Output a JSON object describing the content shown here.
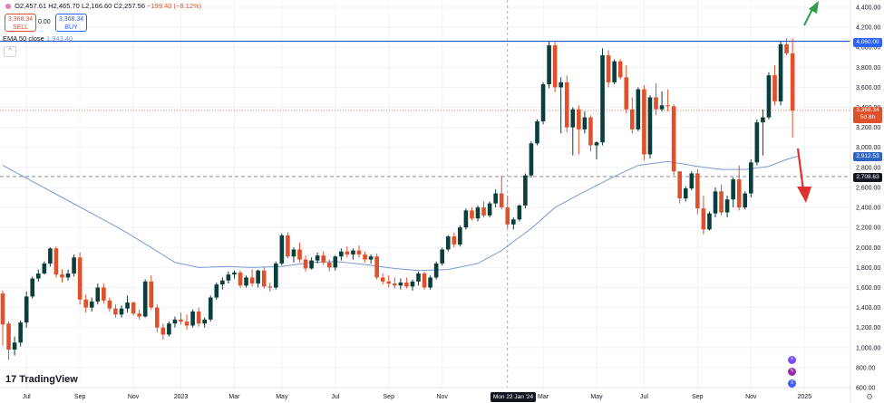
{
  "header": {
    "ohlc": {
      "open": "O2,457.61",
      "high": "H2,465.70",
      "low": "L2,166.60",
      "close": "C2,257.56",
      "change": "−199.40 (−8.12%)"
    },
    "sell_price": "3,368.34",
    "sell_label": "SELL",
    "spread": "0.00",
    "buy_price": "3,368.34",
    "buy_label": "BUY",
    "ema_label": "EMA 50 close",
    "ema_value": "1,943.40",
    "collapse_glyph": "^"
  },
  "logo": {
    "mark": "17",
    "text": "TradingView"
  },
  "price_badges": {
    "resistance": "4,060.00",
    "last_price": "3,368.34",
    "countdown": "5d 8h",
    "ema": "2,912.53",
    "dashed": "2,708.63"
  },
  "crosshair_date": "Mon 22 Jan '24",
  "colors": {
    "up": "#0b3d3a",
    "down": "#e0502a",
    "ema": "#7a9ad6",
    "resistance": "#2457c5",
    "arrow_up": "#2f9e44",
    "arrow_down": "#e03131"
  },
  "icons": [
    "plus-event-icon",
    "bolt-event-icon",
    "flag-event-icon",
    "gear-icon"
  ],
  "chart_data": {
    "type": "candlestick",
    "title": "",
    "ylim": [
      600,
      4400
    ],
    "yticks": [
      600,
      800,
      1000,
      1200,
      1400,
      1600,
      1800,
      2000,
      2200,
      2400,
      2600,
      2800,
      3000,
      3200,
      3400,
      3600,
      3800,
      4000,
      4200,
      4400
    ],
    "ytick_labels": [
      "600.00",
      "800.00",
      "1,000.00",
      "1,200.00",
      "1,400.00",
      "1,600.00",
      "1,800.00",
      "2,000.00",
      "2,200.00",
      "2,400.00",
      "2,600.00",
      "2,800.00",
      "3,000.00",
      "3,200.00",
      "3,400.00",
      "3,600.00",
      "3,800.00",
      "4,000.00",
      "4,200.00",
      "4,400.00"
    ],
    "xticks": [
      {
        "label": "Jul",
        "bar": 4
      },
      {
        "label": "Sep",
        "bar": 13
      },
      {
        "label": "Nov",
        "bar": 22
      },
      {
        "label": "2023",
        "bar": 30
      },
      {
        "label": "Mar",
        "bar": 39
      },
      {
        "label": "May",
        "bar": 47
      },
      {
        "label": "Jul",
        "bar": 56
      },
      {
        "label": "Sep",
        "bar": 65
      },
      {
        "label": "Nov",
        "bar": 74
      },
      {
        "label": "Mar",
        "bar": 91
      },
      {
        "label": "May",
        "bar": 100
      },
      {
        "label": "Jul",
        "bar": 108
      },
      {
        "label": "Sep",
        "bar": 117
      },
      {
        "label": "Nov",
        "bar": 126
      },
      {
        "label": "2025",
        "bar": 135
      }
    ],
    "crosshair_bar": 85,
    "horizontal_levels": [
      4060,
      3368.34,
      2708.63
    ],
    "candles": [
      [
        1540,
        1570,
        1020,
        1230
      ],
      [
        1240,
        1260,
        880,
        980
      ],
      [
        980,
        1110,
        920,
        1050
      ],
      [
        1050,
        1270,
        1010,
        1250
      ],
      [
        1250,
        1560,
        1200,
        1510
      ],
      [
        1510,
        1710,
        1490,
        1690
      ],
      [
        1690,
        1780,
        1660,
        1740
      ],
      [
        1740,
        1860,
        1730,
        1840
      ],
      [
        1840,
        2000,
        1810,
        1990
      ],
      [
        1990,
        2010,
        1700,
        1730
      ],
      [
        1730,
        1780,
        1650,
        1700
      ],
      [
        1700,
        1780,
        1670,
        1740
      ],
      [
        1740,
        1930,
        1710,
        1900
      ],
      [
        1900,
        1950,
        1430,
        1480
      ],
      [
        1480,
        1530,
        1350,
        1400
      ],
      [
        1400,
        1500,
        1360,
        1460
      ],
      [
        1460,
        1640,
        1430,
        1600
      ],
      [
        1600,
        1640,
        1440,
        1470
      ],
      [
        1470,
        1500,
        1360,
        1390
      ],
      [
        1390,
        1430,
        1300,
        1330
      ],
      [
        1330,
        1420,
        1300,
        1390
      ],
      [
        1390,
        1520,
        1350,
        1450
      ],
      [
        1450,
        1460,
        1320,
        1340
      ],
      [
        1340,
        1380,
        1280,
        1310
      ],
      [
        1310,
        1680,
        1300,
        1660
      ],
      [
        1660,
        1720,
        1380,
        1400
      ],
      [
        1400,
        1430,
        1150,
        1200
      ],
      [
        1200,
        1240,
        1080,
        1130
      ],
      [
        1130,
        1260,
        1110,
        1240
      ],
      [
        1240,
        1310,
        1200,
        1280
      ],
      [
        1280,
        1350,
        1230,
        1260
      ],
      [
        1260,
        1330,
        1180,
        1220
      ],
      [
        1220,
        1380,
        1200,
        1360
      ],
      [
        1360,
        1400,
        1210,
        1240
      ],
      [
        1240,
        1300,
        1200,
        1280
      ],
      [
        1280,
        1520,
        1260,
        1500
      ],
      [
        1500,
        1650,
        1480,
        1630
      ],
      [
        1630,
        1700,
        1580,
        1670
      ],
      [
        1670,
        1760,
        1640,
        1730
      ],
      [
        1730,
        1770,
        1690,
        1750
      ],
      [
        1750,
        1770,
        1600,
        1620
      ],
      [
        1620,
        1720,
        1600,
        1700
      ],
      [
        1700,
        1780,
        1610,
        1640
      ],
      [
        1640,
        1780,
        1600,
        1770
      ],
      [
        1770,
        1800,
        1590,
        1610
      ],
      [
        1610,
        1650,
        1560,
        1600
      ],
      [
        1600,
        1860,
        1580,
        1840
      ],
      [
        1840,
        2140,
        1820,
        2120
      ],
      [
        2120,
        2150,
        1890,
        1910
      ],
      [
        1910,
        2000,
        1850,
        1980
      ],
      [
        1980,
        2050,
        1850,
        1880
      ],
      [
        1880,
        1920,
        1760,
        1790
      ],
      [
        1790,
        1900,
        1780,
        1870
      ],
      [
        1870,
        1950,
        1840,
        1920
      ],
      [
        1920,
        1960,
        1830,
        1850
      ],
      [
        1850,
        1880,
        1760,
        1800
      ],
      [
        1800,
        1920,
        1770,
        1910
      ],
      [
        1910,
        1990,
        1870,
        1960
      ],
      [
        1960,
        2010,
        1900,
        1930
      ],
      [
        1930,
        1990,
        1880,
        1970
      ],
      [
        1970,
        2020,
        1900,
        1930
      ],
      [
        1930,
        1960,
        1850,
        1880
      ],
      [
        1880,
        1930,
        1840,
        1910
      ],
      [
        1910,
        1940,
        1680,
        1700
      ],
      [
        1700,
        1740,
        1630,
        1660
      ],
      [
        1660,
        1720,
        1600,
        1640
      ],
      [
        1640,
        1700,
        1590,
        1620
      ],
      [
        1620,
        1690,
        1580,
        1650
      ],
      [
        1650,
        1700,
        1590,
        1610
      ],
      [
        1610,
        1680,
        1570,
        1660
      ],
      [
        1660,
        1760,
        1620,
        1740
      ],
      [
        1740,
        1760,
        1580,
        1600
      ],
      [
        1600,
        1720,
        1580,
        1700
      ],
      [
        1700,
        1860,
        1680,
        1840
      ],
      [
        1840,
        2000,
        1820,
        1980
      ],
      [
        1980,
        2120,
        1960,
        2110
      ],
      [
        2110,
        2150,
        2000,
        2030
      ],
      [
        2030,
        2220,
        2010,
        2200
      ],
      [
        2200,
        2390,
        2180,
        2370
      ],
      [
        2370,
        2400,
        2270,
        2290
      ],
      [
        2290,
        2420,
        2260,
        2400
      ],
      [
        2400,
        2460,
        2300,
        2320
      ],
      [
        2320,
        2460,
        2300,
        2440
      ],
      [
        2440,
        2580,
        2400,
        2540
      ],
      [
        2540,
        2720,
        2380,
        2400
      ],
      [
        2400,
        2520,
        2190,
        2230
      ],
      [
        2230,
        2300,
        2180,
        2280
      ],
      [
        2280,
        2430,
        2260,
        2420
      ],
      [
        2420,
        2740,
        2390,
        2720
      ],
      [
        2720,
        3060,
        2700,
        3040
      ],
      [
        3040,
        3280,
        3020,
        3260
      ],
      [
        3260,
        3650,
        3230,
        3630
      ],
      [
        3630,
        4060,
        3590,
        4020
      ],
      [
        4020,
        4060,
        3550,
        3600
      ],
      [
        3600,
        3700,
        3140,
        3650
      ],
      [
        3650,
        3720,
        3150,
        3200
      ],
      [
        3200,
        3400,
        2920,
        3380
      ],
      [
        3380,
        3420,
        2930,
        3180
      ],
      [
        3180,
        3360,
        3140,
        3300
      ],
      [
        3300,
        3320,
        2960,
        3020
      ],
      [
        3020,
        3060,
        2880,
        3050
      ],
      [
        3050,
        3990,
        3020,
        3920
      ],
      [
        3920,
        3970,
        3600,
        3650
      ],
      [
        3650,
        3880,
        3630,
        3860
      ],
      [
        3860,
        3880,
        3680,
        3700
      ],
      [
        3700,
        3820,
        3340,
        3380
      ],
      [
        3380,
        3500,
        3140,
        3180
      ],
      [
        3180,
        3600,
        3160,
        3580
      ],
      [
        3580,
        3620,
        2870,
        2930
      ],
      [
        2930,
        3520,
        2890,
        3500
      ],
      [
        3500,
        3640,
        3320,
        3380
      ],
      [
        3380,
        3560,
        3360,
        3420
      ],
      [
        3420,
        3580,
        3360,
        3410
      ],
      [
        3410,
        3430,
        2720,
        2760
      ],
      [
        2760,
        2760,
        2440,
        2490
      ],
      [
        2490,
        2610,
        2460,
        2590
      ],
      [
        2590,
        2760,
        2570,
        2740
      ],
      [
        2740,
        2780,
        2330,
        2390
      ],
      [
        2390,
        2520,
        2130,
        2180
      ],
      [
        2180,
        2360,
        2170,
        2340
      ],
      [
        2340,
        2600,
        2300,
        2560
      ],
      [
        2560,
        2630,
        2320,
        2350
      ],
      [
        2350,
        2520,
        2300,
        2480
      ],
      [
        2480,
        2700,
        2400,
        2680
      ],
      [
        2680,
        2820,
        2370,
        2400
      ],
      [
        2400,
        2560,
        2380,
        2540
      ],
      [
        2540,
        2880,
        2500,
        2850
      ],
      [
        2850,
        3280,
        2820,
        3250
      ],
      [
        3250,
        3380,
        2920,
        3300
      ],
      [
        3300,
        3750,
        3280,
        3720
      ],
      [
        3720,
        3820,
        3420,
        3460
      ],
      [
        3460,
        4060,
        3420,
        4030
      ],
      [
        4030,
        4090,
        3920,
        3940
      ],
      [
        3940,
        4090,
        3100,
        3368.34
      ]
    ],
    "ema": [
      [
        0,
        2820
      ],
      [
        5,
        2660
      ],
      [
        10,
        2500
      ],
      [
        15,
        2340
      ],
      [
        20,
        2180
      ],
      [
        25,
        2000
      ],
      [
        29,
        1850
      ],
      [
        33,
        1800
      ],
      [
        38,
        1810
      ],
      [
        42,
        1800
      ],
      [
        47,
        1810
      ],
      [
        52,
        1850
      ],
      [
        56,
        1860
      ],
      [
        61,
        1830
      ],
      [
        66,
        1790
      ],
      [
        70,
        1770
      ],
      [
        75,
        1780
      ],
      [
        80,
        1840
      ],
      [
        84,
        1970
      ],
      [
        89,
        2190
      ],
      [
        93,
        2400
      ],
      [
        98,
        2560
      ],
      [
        103,
        2710
      ],
      [
        107,
        2820
      ],
      [
        112,
        2860
      ],
      [
        117,
        2810
      ],
      [
        121,
        2780
      ],
      [
        125,
        2780
      ],
      [
        129,
        2810
      ],
      [
        132,
        2880
      ],
      [
        134,
        2912.53
      ]
    ],
    "annotations": [
      {
        "type": "arrow",
        "direction": "up",
        "color": "green"
      },
      {
        "type": "arrow",
        "direction": "down",
        "color": "red"
      }
    ]
  }
}
